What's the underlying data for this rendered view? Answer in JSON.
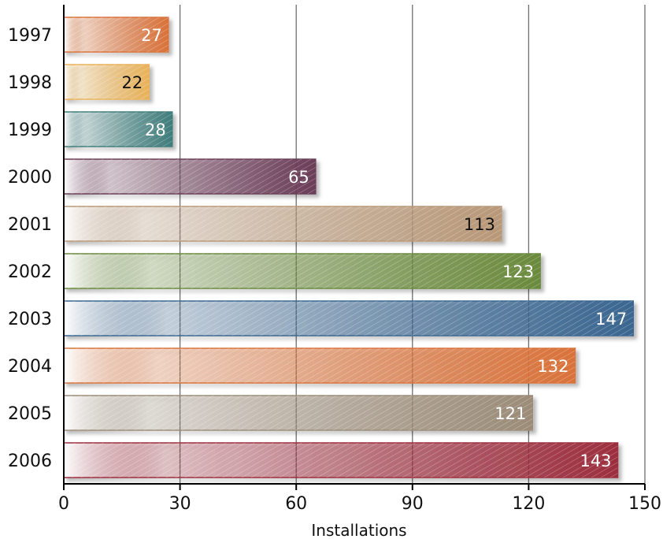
{
  "chart_data": {
    "type": "bar",
    "orientation": "horizontal",
    "categories": [
      "1997",
      "1998",
      "1999",
      "2000",
      "2001",
      "2002",
      "2003",
      "2004",
      "2005",
      "2006"
    ],
    "values": [
      27,
      22,
      28,
      65,
      113,
      123,
      147,
      132,
      121,
      143
    ],
    "colors": [
      "#d9723a",
      "#e8b25a",
      "#3f7d7c",
      "#6b3d58",
      "#b89878",
      "#6a8a3c",
      "#3a6690",
      "#d9723a",
      "#9b8c78",
      "#9c2e3e"
    ],
    "label_colors": [
      "#ffffff",
      "#111111",
      "#ffffff",
      "#ffffff",
      "#111111",
      "#ffffff",
      "#ffffff",
      "#ffffff",
      "#ffffff",
      "#ffffff"
    ],
    "title": "",
    "xlabel": "Installations",
    "ylabel": "",
    "xlim": [
      0,
      150
    ],
    "xticks": [
      0,
      30,
      60,
      90,
      120,
      150
    ],
    "grid": true
  }
}
